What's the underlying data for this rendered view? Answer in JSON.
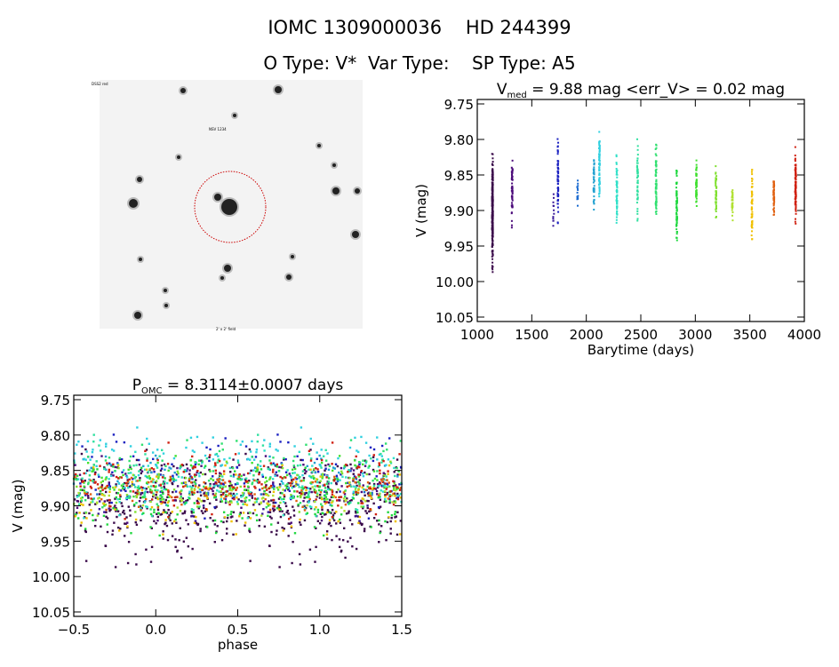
{
  "header": {
    "title": "IOMC 1309000036    HD 244399",
    "subtitle": "O Type: V*  Var Type:    SP Type: A5"
  },
  "image_panel": {
    "labels": [
      "DSS2 red",
      "NSV 1234",
      "2' x 2' field"
    ]
  },
  "chart_data": [
    {
      "type": "scatter",
      "title_main": "V",
      "title_sub": "med",
      "title_rest": " = 9.88 mag <err_V> = 0.02 mag",
      "xlabel": "Barytime (days)",
      "ylabel": "V (mag)",
      "xlim": [
        1000,
        4000
      ],
      "ylim": [
        10.05,
        9.75
      ],
      "xticks": [
        "1000",
        "1500",
        "2000",
        "2500",
        "3000",
        "3500",
        "4000"
      ],
      "yticks": [
        "9.75",
        "9.80",
        "9.85",
        "9.90",
        "9.95",
        "10.00",
        "10.05"
      ],
      "segments": [
        {
          "t": 1140,
          "vmin": 9.8,
          "vmax": 10.0,
          "n": 260,
          "color": "#3a0a4a"
        },
        {
          "t": 1320,
          "vmin": 9.805,
          "vmax": 9.935,
          "n": 60,
          "color": "#4b0a7a"
        },
        {
          "t": 1700,
          "vmin": 9.87,
          "vmax": 9.935,
          "n": 12,
          "color": "#3a1a9a"
        },
        {
          "t": 1740,
          "vmin": 9.775,
          "vmax": 9.935,
          "n": 60,
          "color": "#1a20c0"
        },
        {
          "t": 1920,
          "vmin": 9.85,
          "vmax": 9.91,
          "n": 15,
          "color": "#1a6ad0"
        },
        {
          "t": 2070,
          "vmin": 9.81,
          "vmax": 9.91,
          "n": 40,
          "color": "#20a0d0"
        },
        {
          "t": 2120,
          "vmin": 9.775,
          "vmax": 9.905,
          "n": 70,
          "color": "#30d0e0"
        },
        {
          "t": 2280,
          "vmin": 9.81,
          "vmax": 9.94,
          "n": 60,
          "color": "#30e0c8"
        },
        {
          "t": 2470,
          "vmin": 9.78,
          "vmax": 9.93,
          "n": 50,
          "color": "#30e0a0"
        },
        {
          "t": 2640,
          "vmin": 9.785,
          "vmax": 9.94,
          "n": 70,
          "color": "#30e070"
        },
        {
          "t": 2830,
          "vmin": 9.82,
          "vmax": 9.965,
          "n": 70,
          "color": "#20d840"
        },
        {
          "t": 3010,
          "vmin": 9.81,
          "vmax": 9.925,
          "n": 50,
          "color": "#40e030"
        },
        {
          "t": 3190,
          "vmin": 9.82,
          "vmax": 9.925,
          "n": 45,
          "color": "#80e030"
        },
        {
          "t": 3340,
          "vmin": 9.85,
          "vmax": 9.925,
          "n": 35,
          "color": "#b0e030"
        },
        {
          "t": 3520,
          "vmin": 9.82,
          "vmax": 9.965,
          "n": 55,
          "color": "#f0c000"
        },
        {
          "t": 3720,
          "vmin": 9.84,
          "vmax": 9.92,
          "n": 50,
          "color": "#e06010"
        },
        {
          "t": 3920,
          "vmin": 9.8,
          "vmax": 9.935,
          "n": 90,
          "color": "#d02010"
        }
      ]
    },
    {
      "type": "scatter",
      "title_main": "P",
      "title_sub": "OMC",
      "title_rest": " = 8.3114±0.0007 days",
      "period": 8.3114,
      "xlabel": "phase",
      "ylabel": "V (mag)",
      "xlim": [
        -0.5,
        1.5
      ],
      "ylim": [
        10.05,
        9.75
      ],
      "xticks": [
        "-0.5",
        "0.0",
        "0.5",
        "1.0",
        "1.5"
      ],
      "yticks": [
        "9.75",
        "9.80",
        "9.85",
        "9.90",
        "9.95",
        "10.00",
        "10.05"
      ]
    }
  ]
}
